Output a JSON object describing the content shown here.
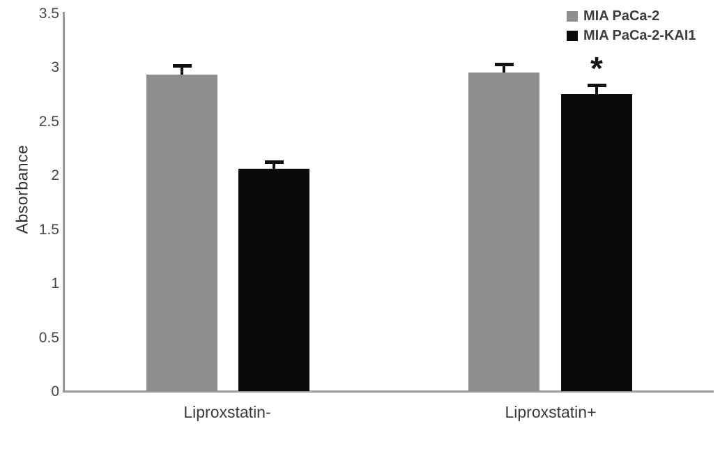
{
  "chart_data": {
    "type": "bar",
    "title": "",
    "xlabel": "",
    "ylabel": "Absorbance",
    "ylim": [
      0,
      3.5
    ],
    "ytick_step": 0.5,
    "ytick_labels": [
      "0",
      "0.5",
      "1",
      "1.5",
      "2",
      "2.5",
      "3",
      "3.5"
    ],
    "categories": [
      "Liproxstatin-",
      "Liproxstatin+"
    ],
    "series": [
      {
        "name": "MIA PaCa-2",
        "color": "#8e8e8e",
        "values": [
          2.93,
          2.95
        ],
        "errors": [
          0.1,
          0.09
        ]
      },
      {
        "name": "MIA PaCa-2-KAI1",
        "color": "#0a0a0a",
        "values": [
          2.06,
          2.75
        ],
        "errors": [
          0.08,
          0.1
        ]
      }
    ],
    "error_bars": true,
    "grid": false,
    "legend_position": "top-right",
    "annotations": [
      {
        "text": "*",
        "category_index": 1,
        "series_index": 1
      }
    ]
  },
  "colors": {
    "axis": "#999999",
    "tick_text": "#474747",
    "category_text": "#3a3a3a",
    "error_bar": "#111111",
    "legend_text": "#3d3d3d",
    "background": "#ffffff"
  }
}
